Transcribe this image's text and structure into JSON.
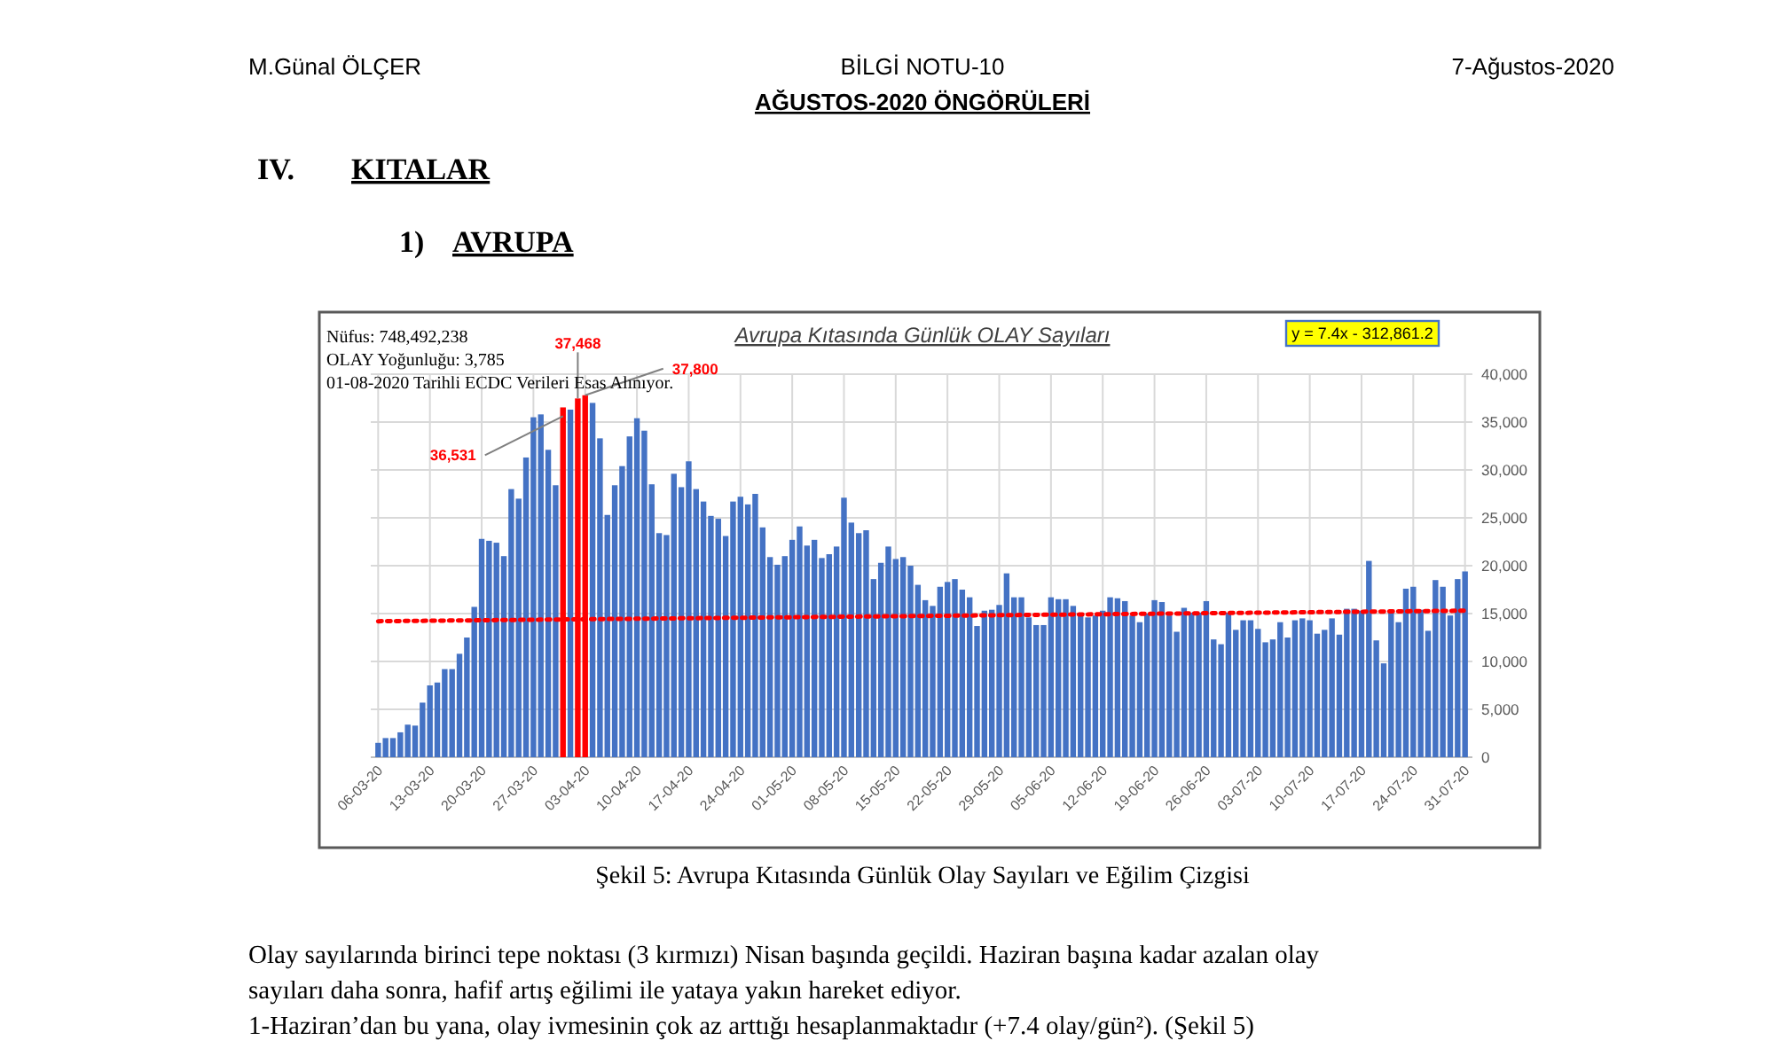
{
  "chart_data": {
    "type": "bar",
    "title": "Avrupa Kıtasında Günlük OLAY Sayıları",
    "x": [
      "2020-03-06",
      "2020-03-07",
      "2020-03-08",
      "2020-03-09",
      "2020-03-10",
      "2020-03-11",
      "2020-03-12",
      "2020-03-13",
      "2020-03-14",
      "2020-03-15",
      "2020-03-16",
      "2020-03-17",
      "2020-03-18",
      "2020-03-19",
      "2020-03-20",
      "2020-03-21",
      "2020-03-22",
      "2020-03-23",
      "2020-03-24",
      "2020-03-25",
      "2020-03-26",
      "2020-03-27",
      "2020-03-28",
      "2020-03-29",
      "2020-03-30",
      "2020-03-31",
      "2020-04-01",
      "2020-04-02",
      "2020-04-03",
      "2020-04-04",
      "2020-04-05",
      "2020-04-06",
      "2020-04-07",
      "2020-04-08",
      "2020-04-09",
      "2020-04-10",
      "2020-04-11",
      "2020-04-12",
      "2020-04-13",
      "2020-04-14",
      "2020-04-15",
      "2020-04-16",
      "2020-04-17",
      "2020-04-18",
      "2020-04-19",
      "2020-04-20",
      "2020-04-21",
      "2020-04-22",
      "2020-04-23",
      "2020-04-24",
      "2020-04-25",
      "2020-04-26",
      "2020-04-27",
      "2020-04-28",
      "2020-04-29",
      "2020-04-30",
      "2020-05-01",
      "2020-05-02",
      "2020-05-03",
      "2020-05-04",
      "2020-05-05",
      "2020-05-06",
      "2020-05-07",
      "2020-05-08",
      "2020-05-09",
      "2020-05-10",
      "2020-05-11",
      "2020-05-12",
      "2020-05-13",
      "2020-05-14",
      "2020-05-15",
      "2020-05-16",
      "2020-05-17",
      "2020-05-18",
      "2020-05-19",
      "2020-05-20",
      "2020-05-21",
      "2020-05-22",
      "2020-05-23",
      "2020-05-24",
      "2020-05-25",
      "2020-05-26",
      "2020-05-27",
      "2020-05-28",
      "2020-05-29",
      "2020-05-30",
      "2020-05-31",
      "2020-06-01",
      "2020-06-02",
      "2020-06-03",
      "2020-06-04",
      "2020-06-05",
      "2020-06-06",
      "2020-06-07",
      "2020-06-08",
      "2020-06-09",
      "2020-06-10",
      "2020-06-11",
      "2020-06-12",
      "2020-06-13",
      "2020-06-14",
      "2020-06-15",
      "2020-06-16",
      "2020-06-17",
      "2020-06-18",
      "2020-06-19",
      "2020-06-20",
      "2020-06-21",
      "2020-06-22",
      "2020-06-23",
      "2020-06-24",
      "2020-06-25",
      "2020-06-26",
      "2020-06-27",
      "2020-06-28",
      "2020-06-29",
      "2020-06-30",
      "2020-07-01",
      "2020-07-02",
      "2020-07-03",
      "2020-07-04",
      "2020-07-05",
      "2020-07-06",
      "2020-07-07",
      "2020-07-08",
      "2020-07-09",
      "2020-07-10",
      "2020-07-11",
      "2020-07-12",
      "2020-07-13",
      "2020-07-14",
      "2020-07-15",
      "2020-07-16",
      "2020-07-17",
      "2020-07-18",
      "2020-07-19",
      "2020-07-20",
      "2020-07-21",
      "2020-07-22",
      "2020-07-23",
      "2020-07-24",
      "2020-07-25",
      "2020-07-26",
      "2020-07-27",
      "2020-07-28",
      "2020-07-29",
      "2020-07-30",
      "2020-07-31"
    ],
    "series": [
      {
        "type": "bar",
        "values": [
          1500,
          2000,
          2000,
          2600,
          3400,
          3300,
          5700,
          7500,
          7800,
          9200,
          9200,
          10800,
          12500,
          15700,
          22800,
          22600,
          22400,
          21000,
          28000,
          27000,
          31300,
          35500,
          35800,
          32100,
          28400,
          36531,
          36300,
          37468,
          37800,
          37000,
          33300,
          25300,
          28400,
          30400,
          33500,
          35400,
          34100,
          28500,
          23400,
          23200,
          29600,
          28200,
          30900,
          28000,
          26700,
          25200,
          24900,
          23100,
          26700,
          27200,
          26400,
          27500,
          24000,
          20900,
          20100,
          21000,
          22700,
          24100,
          22100,
          22700,
          20800,
          21200,
          22000,
          27100,
          24500,
          23400,
          23700,
          18600,
          20300,
          22000,
          20700,
          20900,
          20000,
          18000,
          16400,
          15800,
          17800,
          18300,
          18600,
          17500,
          16700,
          13700,
          15300,
          15400,
          15900,
          19200,
          16700,
          16700,
          14600,
          13800,
          13800,
          16700,
          16500,
          16500,
          15800,
          14800,
          14600,
          14800,
          15300,
          16700,
          16600,
          16300,
          14800,
          14100,
          15000,
          16400,
          16200,
          14800,
          13100,
          15600,
          15100,
          15100,
          16300,
          12300,
          11800,
          15100,
          13300,
          14300,
          14300,
          13400,
          12000,
          12300,
          14100,
          12500,
          14300,
          14500,
          14300,
          12900,
          13300,
          14500,
          12800,
          15500,
          15500,
          15300,
          20500,
          12200,
          9800,
          15400,
          14100,
          17600,
          17800,
          15400,
          13200,
          18500,
          17800,
          14800,
          18600,
          19400
        ],
        "colors": [
          "#4472c4",
          "#4472c4",
          "#4472c4",
          "#4472c4",
          "#4472c4",
          "#4472c4",
          "#4472c4",
          "#4472c4",
          "#4472c4",
          "#4472c4",
          "#4472c4",
          "#4472c4",
          "#4472c4",
          "#4472c4",
          "#4472c4",
          "#4472c4",
          "#4472c4",
          "#4472c4",
          "#4472c4",
          "#4472c4",
          "#4472c4",
          "#4472c4",
          "#4472c4",
          "#4472c4",
          "#4472c4",
          "#ff0000",
          "#4472c4",
          "#ff0000",
          "#ff0000",
          "#4472c4",
          "#4472c4",
          "#4472c4",
          "#4472c4",
          "#4472c4",
          "#4472c4",
          "#4472c4",
          "#4472c4",
          "#4472c4",
          "#4472c4",
          "#4472c4",
          "#4472c4",
          "#4472c4",
          "#4472c4",
          "#4472c4",
          "#4472c4",
          "#4472c4",
          "#4472c4",
          "#4472c4",
          "#4472c4",
          "#4472c4",
          "#4472c4",
          "#4472c4",
          "#4472c4",
          "#4472c4",
          "#4472c4",
          "#4472c4",
          "#4472c4",
          "#4472c4",
          "#4472c4",
          "#4472c4",
          "#4472c4",
          "#4472c4",
          "#4472c4",
          "#4472c4",
          "#4472c4",
          "#4472c4",
          "#4472c4",
          "#4472c4",
          "#4472c4",
          "#4472c4",
          "#4472c4",
          "#4472c4",
          "#4472c4",
          "#4472c4",
          "#4472c4",
          "#4472c4",
          "#4472c4",
          "#4472c4",
          "#4472c4",
          "#4472c4",
          "#4472c4",
          "#4472c4",
          "#4472c4",
          "#4472c4",
          "#4472c4",
          "#4472c4",
          "#4472c4",
          "#4472c4",
          "#4472c4",
          "#4472c4",
          "#4472c4",
          "#4472c4",
          "#4472c4",
          "#4472c4",
          "#4472c4",
          "#4472c4",
          "#4472c4",
          "#4472c4",
          "#4472c4",
          "#4472c4",
          "#4472c4",
          "#4472c4",
          "#4472c4",
          "#4472c4",
          "#4472c4",
          "#4472c4",
          "#4472c4",
          "#4472c4",
          "#4472c4",
          "#4472c4",
          "#4472c4",
          "#4472c4",
          "#4472c4",
          "#4472c4",
          "#4472c4",
          "#4472c4",
          "#4472c4",
          "#4472c4",
          "#4472c4",
          "#4472c4",
          "#4472c4",
          "#4472c4",
          "#4472c4",
          "#4472c4",
          "#4472c4",
          "#4472c4",
          "#4472c4",
          "#4472c4",
          "#4472c4",
          "#4472c4",
          "#4472c4",
          "#4472c4",
          "#4472c4",
          "#4472c4",
          "#4472c4",
          "#4472c4",
          "#4472c4",
          "#4472c4",
          "#4472c4",
          "#4472c4",
          "#4472c4",
          "#4472c4",
          "#4472c4",
          "#4472c4",
          "#4472c4",
          "#4472c4",
          "#4472c4",
          "#4472c4"
        ]
      },
      {
        "type": "line",
        "x": [
          "2020-03-06",
          "2020-07-31"
        ],
        "values": [
          14200,
          15300
        ],
        "color": "#ff0000",
        "line_style": "dotted"
      }
    ],
    "xlim": [
      "2020-03-05",
      "2020-08-01"
    ],
    "xticks": [
      {
        "value": "2020-03-06",
        "label": "06-03-20"
      },
      {
        "value": "2020-03-13",
        "label": "13-03-20"
      },
      {
        "value": "2020-03-20",
        "label": "20-03-20"
      },
      {
        "value": "2020-03-27",
        "label": "27-03-20"
      },
      {
        "value": "2020-04-03",
        "label": "03-04-20"
      },
      {
        "value": "2020-04-10",
        "label": "10-04-20"
      },
      {
        "value": "2020-04-17",
        "label": "17-04-20"
      },
      {
        "value": "2020-04-24",
        "label": "24-04-20"
      },
      {
        "value": "2020-05-01",
        "label": "01-05-20"
      },
      {
        "value": "2020-05-08",
        "label": "08-05-20"
      },
      {
        "value": "2020-05-15",
        "label": "15-05-20"
      },
      {
        "value": "2020-05-22",
        "label": "22-05-20"
      },
      {
        "value": "2020-05-29",
        "label": "29-05-20"
      },
      {
        "value": "2020-06-05",
        "label": "05-06-20"
      },
      {
        "value": "2020-06-12",
        "label": "12-06-20"
      },
      {
        "value": "2020-06-19",
        "label": "19-06-20"
      },
      {
        "value": "2020-06-26",
        "label": "26-06-20"
      },
      {
        "value": "2020-07-03",
        "label": "03-07-20"
      },
      {
        "value": "2020-07-10",
        "label": "10-07-20"
      },
      {
        "value": "2020-07-17",
        "label": "17-07-20"
      },
      {
        "value": "2020-07-24",
        "label": "24-07-20"
      },
      {
        "value": "2020-07-31",
        "label": "31-07-20"
      }
    ],
    "ylim": [
      0,
      40000
    ],
    "yticks": [
      0,
      {
        "value": 5000,
        "label": "5,000"
      },
      {
        "value": 10000,
        "label": "10,000"
      },
      {
        "value": 15000,
        "label": "15,000"
      },
      {
        "value": 20000,
        "label": "20,000"
      },
      {
        "value": 25000,
        "label": "25,000"
      },
      {
        "value": 30000,
        "label": "30,000"
      },
      {
        "value": 35000,
        "label": "35,000"
      },
      {
        "value": 40000,
        "label": "40,000"
      }
    ],
    "grid": true,
    "annotations": [
      "M.Günal ÖLÇER",
      "BİLGİ NOTU-10",
      "7-Ağustos-2020",
      "AĞUSTOS-2020 ÖNGÖRÜLERİ",
      "IV.",
      "KITALAR",
      "1)",
      "AVRUPA",
      "Nüfus: 748,492,238",
      "OLAY Yoğunluğu: 3,785",
      "01-08-2020 Tarihli ECDC Verileri Esas Alınıyor.",
      "y = 7.4x - 312,861.2",
      "Şekil 5: Avrupa Kıtasında Günlük Olay Sayıları ve Eğilim Çizgisi",
      "Olay sayılarında birinci tepe noktası (3 kırmızı) Nisan başında geçildi. Haziran başına kadar azalan olay",
      "sayıları daha sonra, hafif artış eğilimi ile yataya yakın hareket ediyor.",
      "1-Haziran’dan bu yana, olay ivmesinin çok az arttığı hesaplanmaktadır (+7.4 olay/gün²). (Şekil 5)",
      {
        "text": "36,531",
        "x": "2020-03-31",
        "y": 36531
      },
      {
        "text": "37,468",
        "x": "2020-04-02",
        "y": 37468
      },
      {
        "text": "37,800",
        "x": "2020-04-03",
        "y": 37800
      }
    ]
  }
}
